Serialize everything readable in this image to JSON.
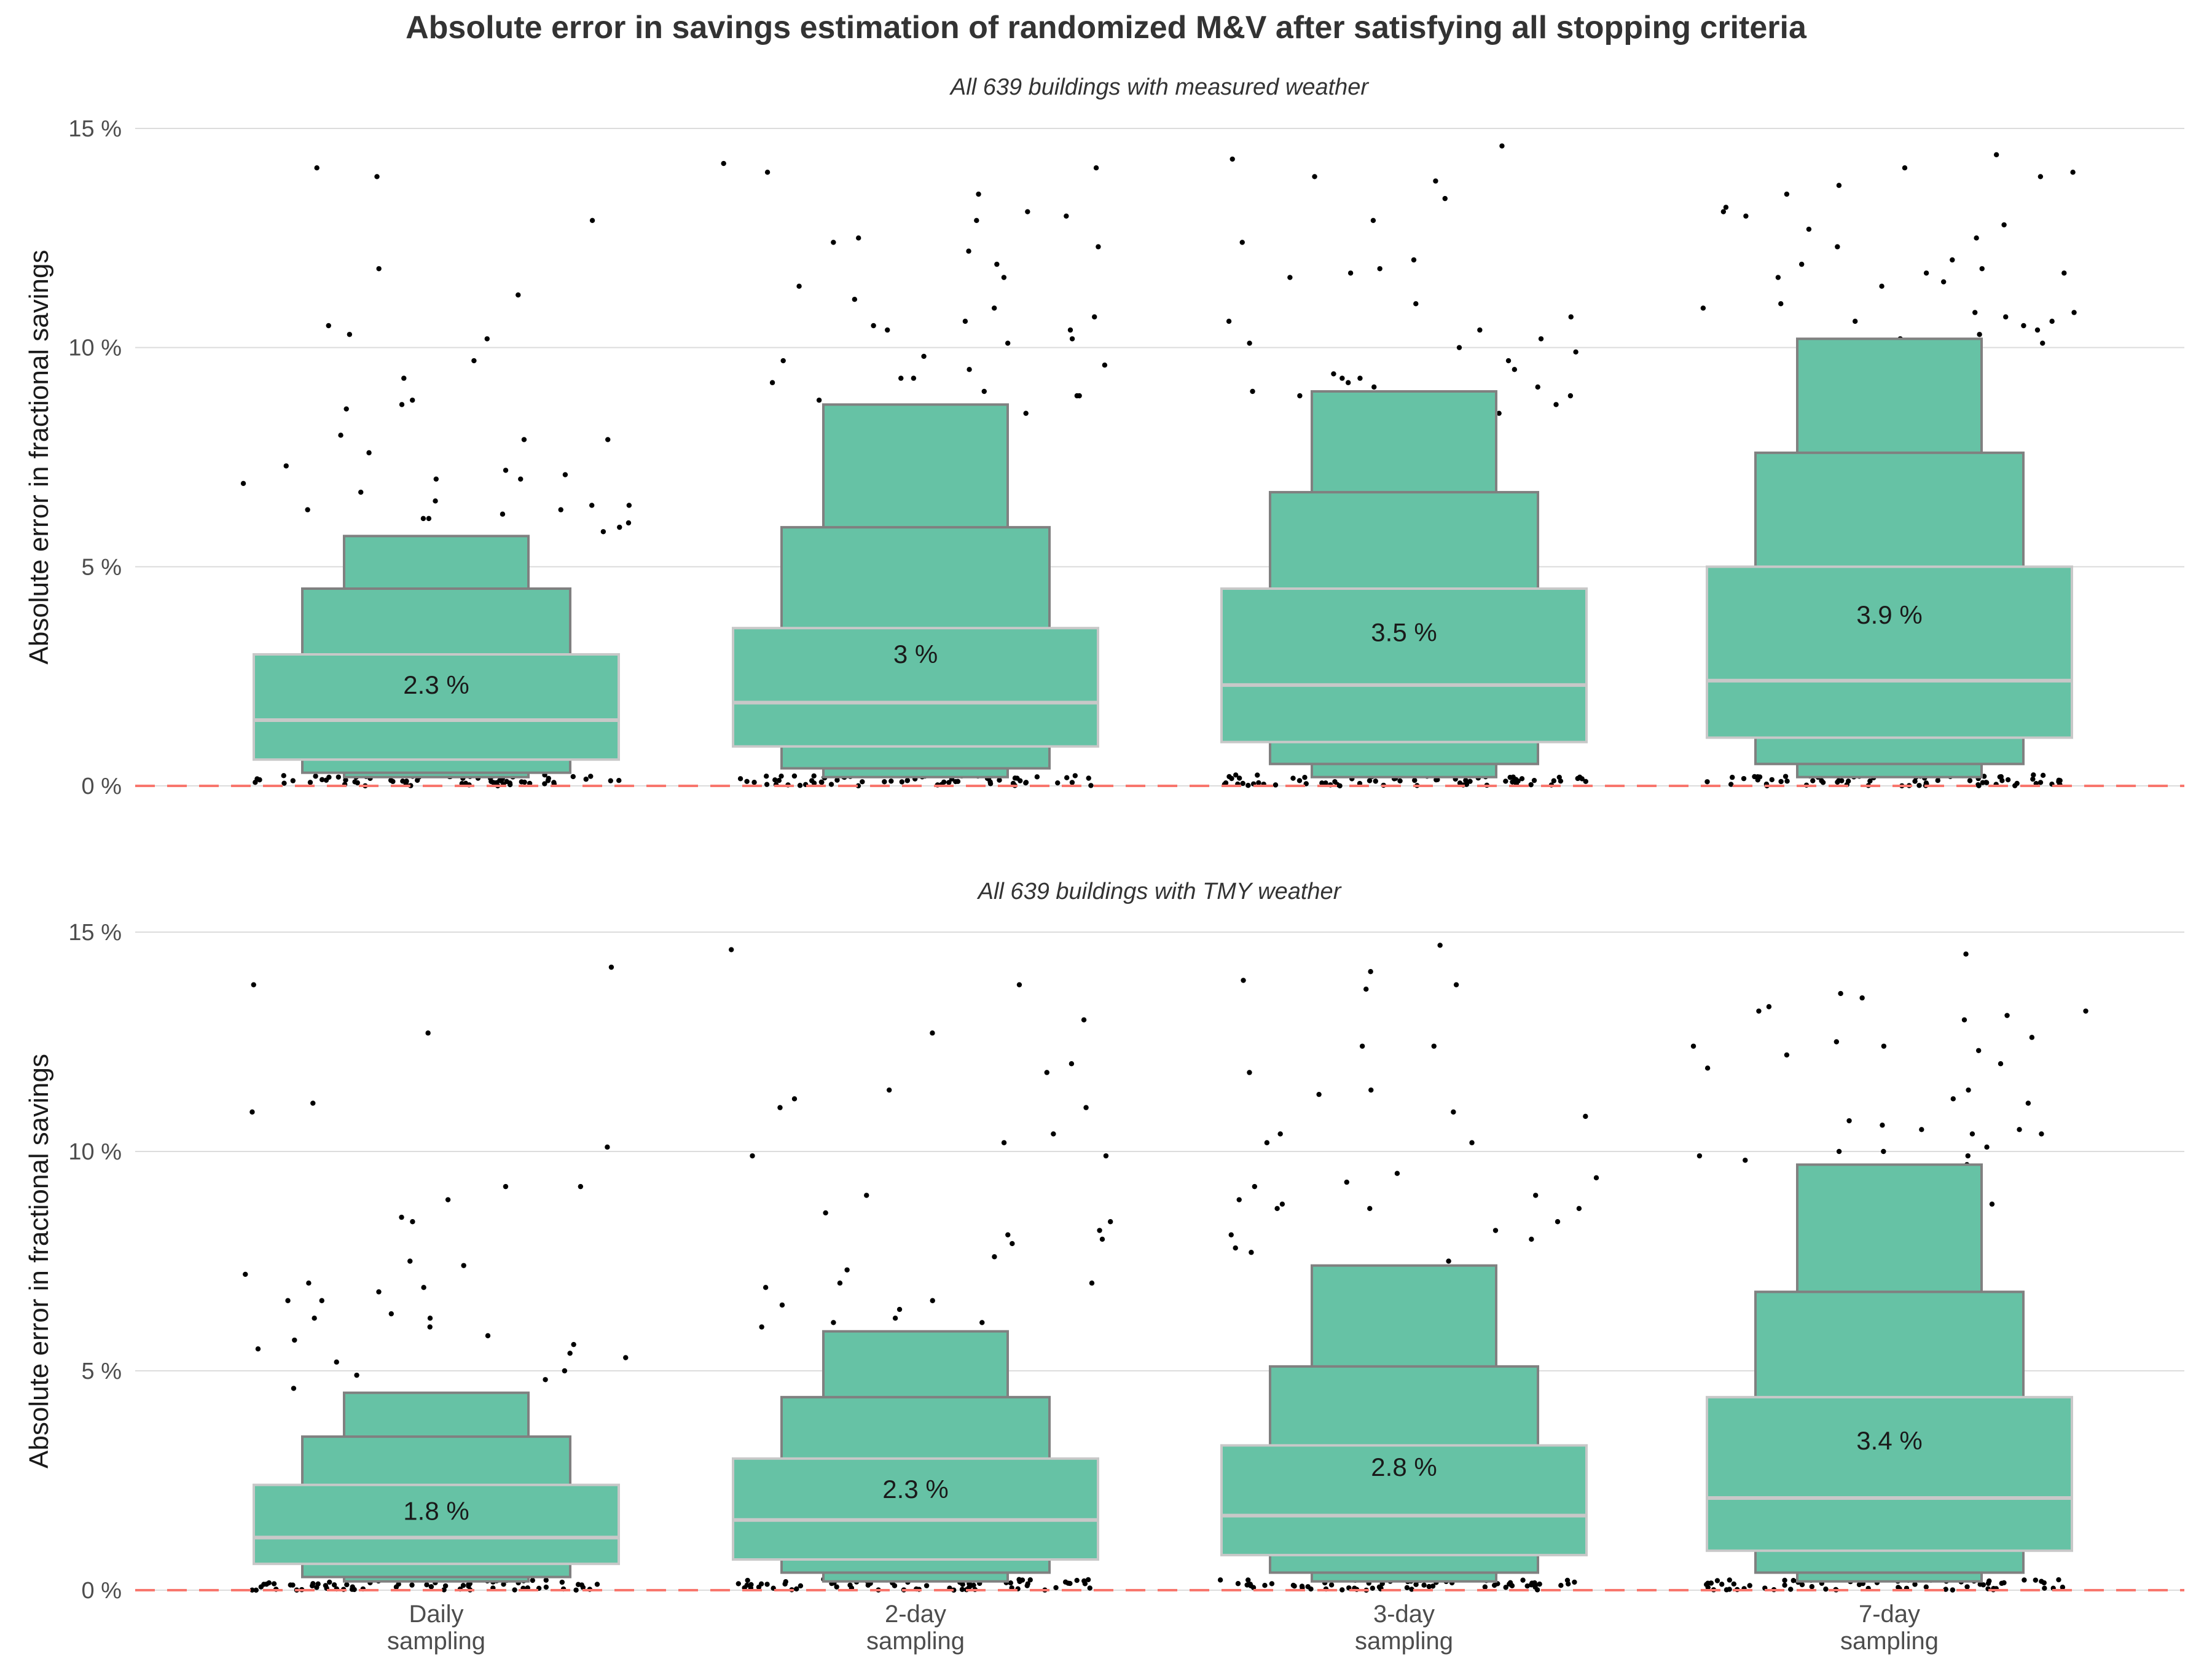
{
  "chart_data": {
    "type": "boxen",
    "title": "Absolute error in savings estimation of randomized M&V after satisfying all stopping criteria",
    "ylabel": "Absolute error in fractional savings",
    "ylim": [
      0,
      15
    ],
    "y_ticks": [
      "0 %",
      "5 %",
      "10 %",
      "15 %"
    ],
    "y_tick_values": [
      0,
      5,
      10,
      15
    ],
    "categories": [
      {
        "line1": "Daily",
        "line2": "sampling"
      },
      {
        "line1": "2-day",
        "line2": "sampling"
      },
      {
        "line1": "3-day",
        "line2": "sampling"
      },
      {
        "line1": "7-day",
        "line2": "sampling"
      }
    ],
    "reference_line": {
      "y": 0,
      "color": "#F8766D",
      "style": "dashed"
    },
    "box_fill": "#66C2A5",
    "box_edge": "#808080",
    "quartile_line_color": "#C8C8C8",
    "grid": true,
    "panels": [
      {
        "subtitle": "All 639 buildings with measured weather",
        "groups": [
          {
            "median": 1.5,
            "mean_label": "2.3 %",
            "mean": 2.3,
            "levels": [
              [
                0.6,
                3.0
              ],
              [
                0.3,
                4.5
              ],
              [
                0.2,
                5.7
              ]
            ],
            "outliers": [
              14.1,
              13.9,
              12.9,
              11.8,
              11.2,
              10.5,
              10.3,
              10.2,
              9.7,
              9.3,
              8.8,
              8.7,
              8.6,
              8.0,
              7.9,
              7.9,
              7.6,
              7.3,
              7.2,
              7.1,
              7.0,
              7.0,
              6.9,
              6.7,
              6.5,
              6.4,
              6.4,
              6.3,
              6.3,
              6.2,
              6.1,
              6.1,
              6.0,
              5.9,
              5.8
            ]
          },
          {
            "median": 1.9,
            "mean_label": "3 %",
            "mean": 3.0,
            "levels": [
              [
                0.9,
                3.6
              ],
              [
                0.4,
                5.9
              ],
              [
                0.2,
                8.7
              ]
            ],
            "outliers": [
              14.2,
              14.1,
              14.0,
              13.5,
              13.1,
              13.0,
              12.9,
              12.5,
              12.4,
              12.3,
              12.2,
              11.9,
              11.6,
              11.4,
              11.1,
              10.9,
              10.7,
              10.6,
              10.5,
              10.4,
              10.4,
              10.2,
              10.1,
              9.8,
              9.7,
              9.6,
              9.5,
              9.3,
              9.3,
              9.2,
              9.0,
              8.9,
              8.9,
              8.8,
              8.5
            ]
          },
          {
            "median": 2.3,
            "mean_label": "3.5 %",
            "mean": 3.5,
            "levels": [
              [
                1.0,
                4.5
              ],
              [
                0.5,
                6.7
              ],
              [
                0.2,
                9.0
              ]
            ],
            "outliers": [
              14.6,
              14.3,
              13.9,
              13.8,
              13.4,
              12.9,
              12.4,
              12.0,
              11.8,
              11.7,
              11.6,
              11.0,
              10.7,
              10.6,
              10.4,
              10.2,
              10.1,
              10.0,
              9.9,
              9.7,
              9.5,
              9.4,
              9.3,
              9.3,
              9.2,
              9.1,
              9.1,
              9.0,
              8.9,
              8.9,
              8.7,
              8.5,
              7.2
            ]
          },
          {
            "median": 2.4,
            "mean_label": "3.9 %",
            "mean": 3.9,
            "levels": [
              [
                1.1,
                5.0
              ],
              [
                0.5,
                7.6
              ],
              [
                0.2,
                10.2
              ]
            ],
            "outliers": [
              14.4,
              14.1,
              14.0,
              13.9,
              13.7,
              13.5,
              13.2,
              13.1,
              13.0,
              12.8,
              12.7,
              12.5,
              12.3,
              12.0,
              11.9,
              11.8,
              11.7,
              11.7,
              11.6,
              11.5,
              11.4,
              11.0,
              10.9,
              10.8,
              10.8,
              10.7,
              10.6,
              10.6,
              10.5,
              10.4,
              10.3,
              10.2,
              10.1,
              8.1
            ]
          }
        ]
      },
      {
        "subtitle": "All 639 buildings with TMY weather",
        "groups": [
          {
            "median": 1.2,
            "mean_label": "1.8 %",
            "mean": 1.8,
            "levels": [
              [
                0.6,
                2.4
              ],
              [
                0.3,
                3.5
              ],
              [
                0.2,
                4.5
              ]
            ],
            "outliers": [
              14.2,
              13.8,
              12.7,
              11.1,
              10.9,
              10.1,
              9.2,
              9.2,
              8.9,
              8.5,
              8.4,
              7.5,
              7.4,
              7.2,
              7.0,
              6.9,
              6.8,
              6.6,
              6.6,
              6.3,
              6.2,
              6.2,
              6.0,
              5.8,
              5.7,
              5.6,
              5.5,
              5.4,
              5.3,
              5.2,
              5.0,
              4.9,
              4.8,
              4.6
            ]
          },
          {
            "median": 1.6,
            "mean_label": "2.3 %",
            "mean": 2.3,
            "levels": [
              [
                0.7,
                3.0
              ],
              [
                0.4,
                4.4
              ],
              [
                0.2,
                5.9
              ]
            ],
            "outliers": [
              14.6,
              13.8,
              13.0,
              12.7,
              12.0,
              11.8,
              11.4,
              11.2,
              11.0,
              11.0,
              10.4,
              10.2,
              9.9,
              9.9,
              9.0,
              8.6,
              8.4,
              8.2,
              8.1,
              8.0,
              7.9,
              7.6,
              7.3,
              7.0,
              7.0,
              6.9,
              6.6,
              6.5,
              6.4,
              6.2,
              6.1,
              6.1,
              6.0,
              5.4,
              5.2
            ]
          },
          {
            "median": 1.7,
            "mean_label": "2.8 %",
            "mean": 2.8,
            "levels": [
              [
                0.8,
                3.3
              ],
              [
                0.4,
                5.1
              ],
              [
                0.2,
                7.4
              ]
            ],
            "outliers": [
              14.7,
              14.1,
              13.9,
              13.8,
              13.7,
              12.4,
              12.4,
              11.8,
              11.4,
              11.3,
              10.9,
              10.8,
              10.4,
              10.2,
              10.2,
              9.5,
              9.4,
              9.3,
              9.2,
              9.0,
              8.9,
              8.8,
              8.7,
              8.7,
              8.7,
              8.4,
              8.2,
              8.1,
              8.0,
              7.8,
              7.7,
              7.5
            ]
          },
          {
            "median": 2.1,
            "mean_label": "3.4 %",
            "mean": 3.4,
            "levels": [
              [
                0.9,
                4.4
              ],
              [
                0.4,
                6.8
              ],
              [
                0.2,
                9.7
              ]
            ],
            "outliers": [
              14.5,
              13.6,
              13.5,
              13.3,
              13.2,
              13.2,
              13.1,
              13.0,
              12.6,
              12.5,
              12.4,
              12.4,
              12.3,
              12.2,
              12.0,
              11.9,
              11.4,
              11.2,
              11.1,
              10.7,
              10.6,
              10.5,
              10.5,
              10.4,
              10.4,
              10.1,
              10.0,
              10.0,
              9.9,
              9.9,
              9.8,
              9.7,
              8.8,
              8.1,
              7.7,
              7.4
            ]
          }
        ]
      }
    ]
  }
}
